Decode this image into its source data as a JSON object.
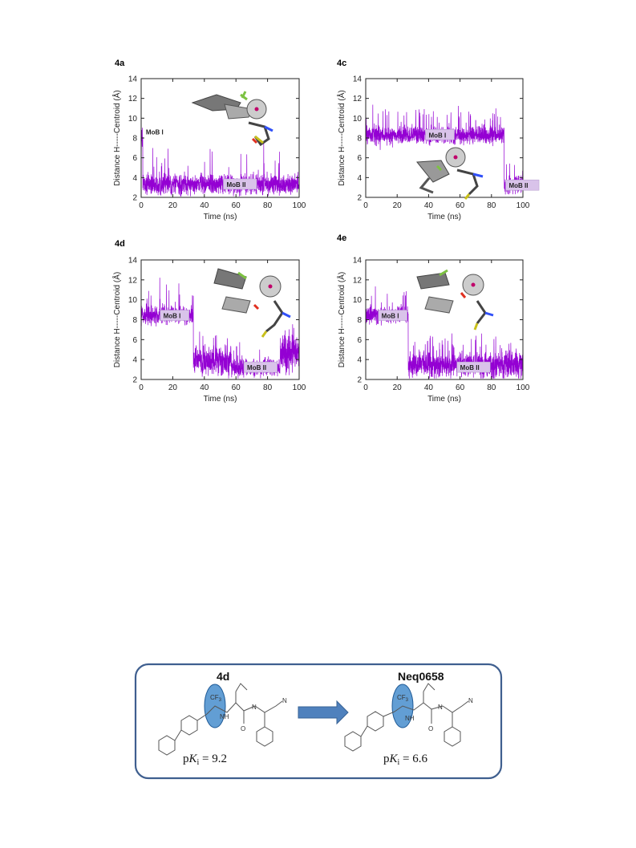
{
  "colors": {
    "trace": "#9400d3",
    "state_label_bg": "#d9c3ea",
    "box_border": "#3f5f8f",
    "arrow": "#4f81bd",
    "highlight": "#3b86c9"
  },
  "chart_data": [
    {
      "panel": "4a",
      "type": "line",
      "xlabel": "Time (ns)",
      "ylabel": "Distance H-----Centroid (Å)",
      "xlim": [
        0,
        100
      ],
      "ylim": [
        2,
        14
      ],
      "xticks": [
        0,
        20,
        40,
        60,
        80,
        100
      ],
      "yticks": [
        2,
        4,
        6,
        8,
        10,
        12,
        14
      ],
      "series": [
        {
          "segments": [
            {
              "start": 0,
              "end": 1,
              "mean": 7.8,
              "noise": 0.8,
              "spike_prob": 0.02,
              "spike_amp": 2
            },
            {
              "start": 1,
              "end": 100,
              "mean": 3.3,
              "noise": 0.7,
              "spike_prob": 0.03,
              "spike_amp": 3.5
            }
          ]
        }
      ],
      "annotations": [
        {
          "text": "MoB I",
          "x": 3,
          "y": 8.6,
          "boxed": false
        },
        {
          "text": "MoB II",
          "x": 52,
          "y": 3.3,
          "boxed": true
        }
      ]
    },
    {
      "panel": "4c",
      "type": "line",
      "xlabel": "Time (ns)",
      "ylabel": "Distance H-----Centroid (Å)",
      "xlim": [
        0,
        100
      ],
      "ylim": [
        2,
        14
      ],
      "xticks": [
        0,
        20,
        40,
        60,
        80,
        100
      ],
      "yticks": [
        2,
        4,
        6,
        8,
        10,
        12,
        14
      ],
      "series": [
        {
          "segments": [
            {
              "start": 0,
              "end": 88,
              "mean": 8.3,
              "noise": 0.6,
              "spike_prob": 0.05,
              "spike_amp": 2.6
            },
            {
              "start": 88,
              "end": 100,
              "mean": 3.2,
              "noise": 0.6,
              "spike_prob": 0.04,
              "spike_amp": 2.5
            }
          ]
        }
      ],
      "annotations": [
        {
          "text": "MoB I",
          "x": 38,
          "y": 8.3,
          "boxed": true
        },
        {
          "text": "MoB II",
          "x": 89,
          "y": 3.2,
          "boxed": true
        }
      ]
    },
    {
      "panel": "4d",
      "type": "line",
      "xlabel": "Time (ns)",
      "ylabel": "Distance H-----Centroid (Å)",
      "xlim": [
        0,
        100
      ],
      "ylim": [
        2,
        14
      ],
      "xticks": [
        0,
        20,
        40,
        60,
        80,
        100
      ],
      "yticks": [
        2,
        4,
        6,
        8,
        10,
        12,
        14
      ],
      "series": [
        {
          "segments": [
            {
              "start": 0,
              "end": 33,
              "mean": 8.4,
              "noise": 0.6,
              "spike_prob": 0.05,
              "spike_amp": 3
            },
            {
              "start": 33,
              "end": 57,
              "mean": 3.8,
              "noise": 1.0,
              "spike_prob": 0.06,
              "spike_amp": 2.5
            },
            {
              "start": 57,
              "end": 88,
              "mean": 3.2,
              "noise": 0.6,
              "spike_prob": 0.04,
              "spike_amp": 2.5
            },
            {
              "start": 88,
              "end": 100,
              "mean": 4.6,
              "noise": 1.2,
              "spike_prob": 0.05,
              "spike_amp": 2
            }
          ]
        }
      ],
      "annotations": [
        {
          "text": "MoB I",
          "x": 12,
          "y": 8.4,
          "boxed": true
        },
        {
          "text": "MoB II",
          "x": 65,
          "y": 3.2,
          "boxed": true
        }
      ]
    },
    {
      "panel": "4e",
      "type": "line",
      "xlabel": "Time (ns)",
      "ylabel": "Distance H-----Centroid (Å)",
      "xlim": [
        0,
        100
      ],
      "ylim": [
        2,
        14
      ],
      "xticks": [
        0,
        20,
        40,
        60,
        80,
        100
      ],
      "yticks": [
        2,
        4,
        6,
        8,
        10,
        12,
        14
      ],
      "series": [
        {
          "segments": [
            {
              "start": 0,
              "end": 27,
              "mean": 8.4,
              "noise": 0.6,
              "spike_prob": 0.05,
              "spike_amp": 3
            },
            {
              "start": 27,
              "end": 100,
              "mean": 3.5,
              "noise": 0.9,
              "spike_prob": 0.06,
              "spike_amp": 2.8
            }
          ]
        }
      ],
      "annotations": [
        {
          "text": "MoB I",
          "x": 8,
          "y": 8.4,
          "boxed": true
        },
        {
          "text": "MoB II",
          "x": 58,
          "y": 3.2,
          "boxed": true
        }
      ]
    }
  ],
  "scheme": {
    "left": {
      "title": "4d",
      "pki_prefix": "p",
      "pki_k": "K",
      "pki_sub": "i",
      "pki_value": " = 9.2",
      "cf3": "CF",
      "cf3_sub": "3",
      "nh": "NH",
      "o": "O",
      "n": "N",
      "cn": "N"
    },
    "right": {
      "title": "Neq0658",
      "pki_prefix": "p",
      "pki_k": "K",
      "pki_sub": "i",
      "pki_value": " = 6.6",
      "cf3": "CF",
      "cf3_sub": "3",
      "nh": "NH",
      "o": "O",
      "n": "N",
      "cn": "N"
    }
  }
}
